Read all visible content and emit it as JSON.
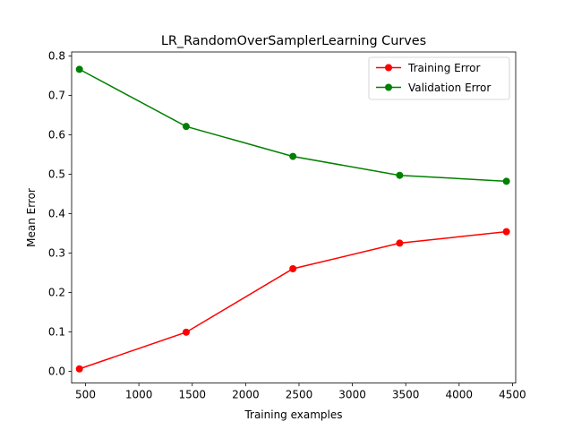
{
  "chart_data": {
    "type": "line",
    "title": "LR_RandomOverSamplerLearning Curves",
    "xlabel": "Training examples",
    "ylabel": "Mean Error",
    "xlim": [
      370,
      4530
    ],
    "ylim": [
      -0.03,
      0.81
    ],
    "xticks": [
      500,
      1000,
      1500,
      2000,
      2500,
      3000,
      3500,
      4000,
      4500
    ],
    "yticks": [
      0.0,
      0.1,
      0.2,
      0.3,
      0.4,
      0.5,
      0.6,
      0.7,
      0.8
    ],
    "ytick_labels": [
      "0.0",
      "0.1",
      "0.2",
      "0.3",
      "0.4",
      "0.5",
      "0.6",
      "0.7",
      "0.8"
    ],
    "grid": false,
    "legend_position": "top-right",
    "x": [
      443,
      1443,
      2443,
      3443,
      4443
    ],
    "series": [
      {
        "name": "Training Error",
        "color": "#ff0000",
        "values": [
          0.006,
          0.099,
          0.26,
          0.325,
          0.354
        ]
      },
      {
        "name": "Validation Error",
        "color": "#008000",
        "values": [
          0.766,
          0.621,
          0.545,
          0.497,
          0.482
        ]
      }
    ]
  }
}
